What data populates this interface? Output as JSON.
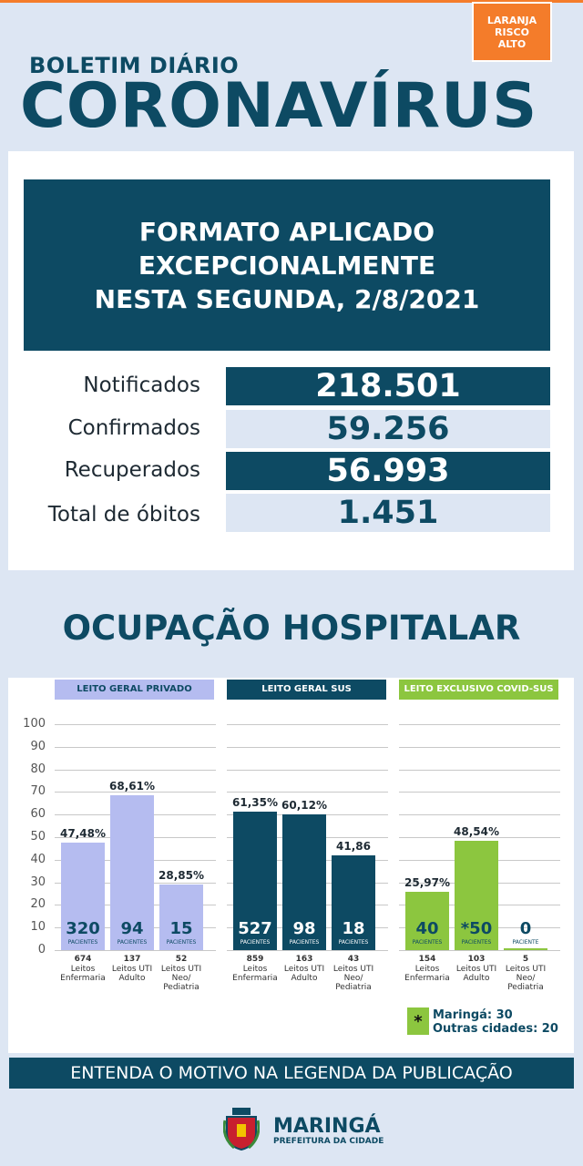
{
  "header": {
    "risk_badge": [
      "LARANJA",
      "RISCO",
      "ALTO"
    ],
    "kicker": "BOLETIM DIÁRIO",
    "title": "CORONAVÍRUS"
  },
  "notice": [
    "FORMATO APLICADO",
    "EXCEPCIONALMENTE",
    "NESTA SEGUNDA, 2/8/2021"
  ],
  "stats": [
    {
      "label": "Notificados",
      "value": "218.501"
    },
    {
      "label": "Confirmados",
      "value": "59.256"
    },
    {
      "label": "Recuperados",
      "value": "56.993"
    },
    {
      "label": "Total de óbitos",
      "value": "1.451"
    }
  ],
  "section_title": "OCUPAÇÃO HOSPITALAR",
  "chart_data": {
    "type": "bar",
    "ylim": [
      0,
      100
    ],
    "yticks": [
      0,
      10,
      20,
      30,
      40,
      50,
      60,
      70,
      80,
      90,
      100
    ],
    "grid": true,
    "unit_label": "PACIENTES",
    "unit_label_singular": "PACIENTE",
    "groups": [
      {
        "name": "LEITO GERAL PRIVADO",
        "header_color": "#b5bcf0",
        "header_text_color": "#0d4a63",
        "bar_color": "#b5bcf0",
        "bar_text_color": "#0d4a63",
        "bars": [
          {
            "pct_label": "47,48%",
            "value": 47.48,
            "patients": "320",
            "beds": "674",
            "category": "Leitos Enfermaria"
          },
          {
            "pct_label": "68,61%",
            "value": 68.61,
            "patients": "94",
            "beds": "137",
            "category": "Leitos UTI Adulto"
          },
          {
            "pct_label": "28,85%",
            "value": 28.85,
            "patients": "15",
            "beds": "52",
            "category": "Leitos UTI Neo/ Pediatria"
          }
        ]
      },
      {
        "name": "LEITO GERAL SUS",
        "header_color": "#0d4a63",
        "header_text_color": "#ffffff",
        "bar_color": "#0d4a63",
        "bar_text_color": "#ffffff",
        "bars": [
          {
            "pct_label": "61,35%",
            "value": 61.35,
            "patients": "527",
            "beds": "859",
            "category": "Leitos Enfermaria"
          },
          {
            "pct_label": "60,12%",
            "value": 60.12,
            "patients": "98",
            "beds": "163",
            "category": "Leitos UTI Adulto"
          },
          {
            "pct_label": "41,86",
            "value": 41.86,
            "patients": "18",
            "beds": "43",
            "category": "Leitos UTI Neo/ Pediatria"
          }
        ]
      },
      {
        "name": "LEITO EXCLUSIVO COVID-SUS",
        "header_color": "#8cc63f",
        "header_text_color": "#ffffff",
        "bar_color": "#8cc63f",
        "bar_text_color": "#0d4a63",
        "bars": [
          {
            "pct_label": "25,97%",
            "value": 25.97,
            "patients": "40",
            "beds": "154",
            "category": "Leitos Enfermaria"
          },
          {
            "pct_label": "48,54%",
            "value": 48.54,
            "patients": "*50",
            "beds": "103",
            "category": "Leitos UTI Adulto"
          },
          {
            "pct_label": "",
            "value": 0,
            "patients": "0",
            "beds": "5",
            "category": "Leitos UTI Neo/ Pediatria"
          }
        ]
      }
    ]
  },
  "legend": {
    "marker": "*",
    "lines": [
      "Maringá: 30",
      "Outras cidades: 20"
    ]
  },
  "footer": "ENTENDA O MOTIVO NA LEGENDA DA PUBLICAÇÃO",
  "brand": {
    "name": "MARINGÁ",
    "sub": "PREFEITURA DA CIDADE"
  },
  "colors": {
    "navy": "#0d4a63",
    "orange": "#f47c2a",
    "lavender": "#b5bcf0",
    "green": "#8cc63f",
    "light_blue": "#dde6f3"
  }
}
